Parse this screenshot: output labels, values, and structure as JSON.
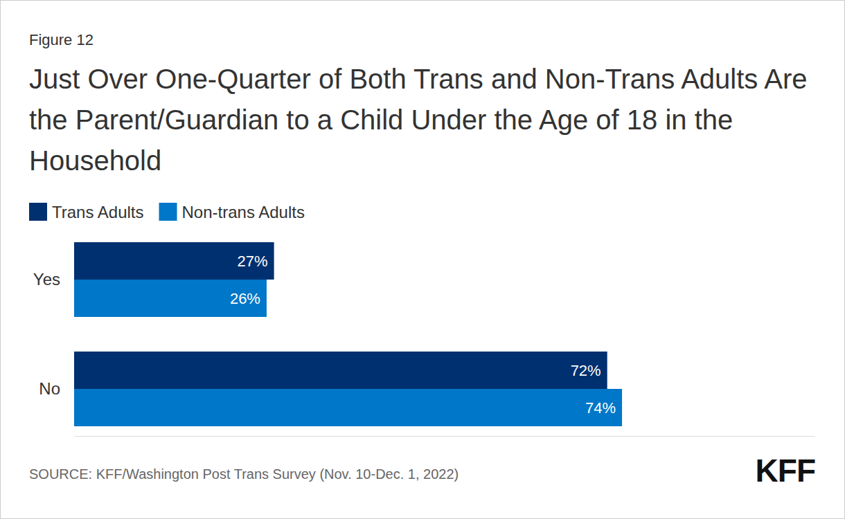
{
  "chart_data": {
    "type": "bar",
    "orientation": "horizontal",
    "title": "Just Over One-Quarter of Both Trans and Non-Trans Adults Are the Parent/Guardian to a Child Under the Age of 18 in the Household",
    "annotations": [
      "Figure 12",
      "SOURCE: KFF/Washington Post Trans Survey (Nov. 10-Dec. 1, 2022)",
      "KFF"
    ],
    "categories": [
      "Yes",
      "No"
    ],
    "series": [
      {
        "name": "Trans Adults",
        "color": "#00306f",
        "values": [
          27,
          72
        ],
        "value_labels": [
          "27%",
          "72%"
        ]
      },
      {
        "name": "Non-trans Adults",
        "color": "#0077c8",
        "values": [
          26,
          74
        ],
        "value_labels": [
          "26%",
          "74%"
        ]
      }
    ],
    "xlim": [
      0,
      100
    ],
    "xticks": [
      0,
      100
    ],
    "grid": false,
    "legend": "top-left",
    "data_labels": true,
    "tick_labels": "y"
  }
}
